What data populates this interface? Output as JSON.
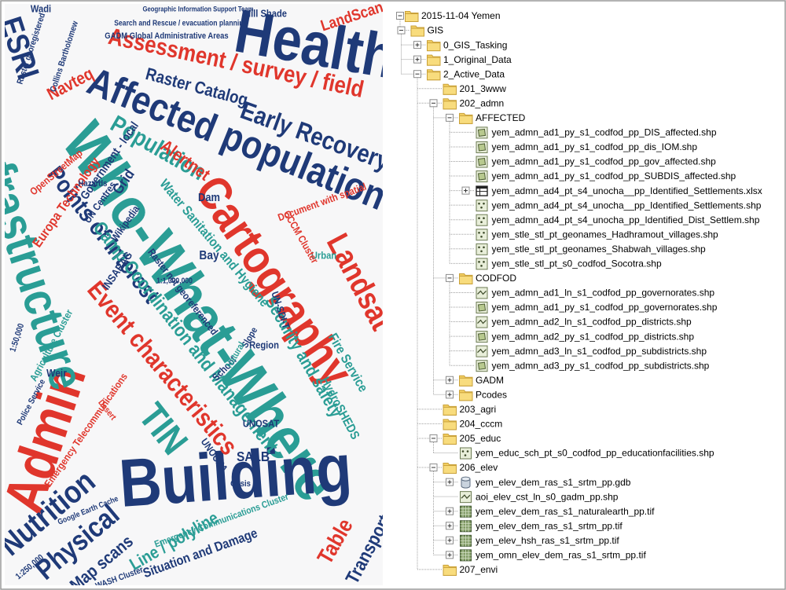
{
  "cloud": {
    "words": [
      {
        "text": "Who-What-Where",
        "color": "#2a9d95"
      },
      {
        "text": "Building",
        "color": "#1f3a78"
      },
      {
        "text": "Affected population",
        "color": "#1f3a78"
      },
      {
        "text": "Health",
        "color": "#1f3a78"
      },
      {
        "text": "Cartography",
        "color": "#e0362c"
      },
      {
        "text": "Admin",
        "color": "#e0362c"
      },
      {
        "text": "Infrastructure",
        "color": "#2a9d95"
      },
      {
        "text": "Assessment / survey / field",
        "color": "#e0362c"
      },
      {
        "text": "Early Recovery",
        "color": "#1f3a78"
      },
      {
        "text": "Population",
        "color": "#2a9d95"
      },
      {
        "text": "Alertnet",
        "color": "#e0362c"
      },
      {
        "text": "Points of Interest",
        "color": "#1f3a78"
      },
      {
        "text": "Event characteristics",
        "color": "#e0362c"
      },
      {
        "text": "Camp Coordination and Management",
        "color": "#2a9d95"
      },
      {
        "text": "Landsat",
        "color": "#e0362c"
      },
      {
        "text": "TIN",
        "color": "#2a9d95"
      },
      {
        "text": "Nutrition",
        "color": "#1f3a78"
      },
      {
        "text": "Physical",
        "color": "#1f3a78"
      },
      {
        "text": "Map scans",
        "color": "#1f3a78"
      },
      {
        "text": "Line / polyline",
        "color": "#2a9d95"
      },
      {
        "text": "Situation and Damage",
        "color": "#1f3a78"
      },
      {
        "text": "Security and safety",
        "color": "#2a9d95"
      },
      {
        "text": "Fire Service",
        "color": "#2a9d95"
      },
      {
        "text": "Table",
        "color": "#e0362c"
      },
      {
        "text": "Transport",
        "color": "#1f3a78"
      },
      {
        "text": "LandScan",
        "color": "#e0362c"
      },
      {
        "text": "ESRI",
        "color": "#1f3a78"
      },
      {
        "text": "Navteq",
        "color": "#e0362c"
      },
      {
        "text": "Raster Catalog",
        "color": "#1f3a78"
      },
      {
        "text": "Hill Shade",
        "color": "#1f3a78"
      },
      {
        "text": "Water Sanitation and Hygiene",
        "color": "#2a9d95"
      },
      {
        "text": "Europa Technology",
        "color": "#e0362c"
      },
      {
        "text": "Government - local",
        "color": "#1f3a78"
      },
      {
        "text": "OpenStreetMap",
        "color": "#e0362c"
      },
      {
        "text": "Grid",
        "color": "#1f3a78"
      },
      {
        "text": "UNOSAT",
        "color": "#1f3a78"
      },
      {
        "text": "SALB",
        "color": "#1f3a78"
      },
      {
        "text": "UNOCHA",
        "color": "#1f3a78"
      },
      {
        "text": "Emergency Telecommunications",
        "color": "#e0362c"
      },
      {
        "text": "Agriculture Cluster",
        "color": "#2a9d95"
      },
      {
        "text": "1:250,000",
        "color": "#1f3a78"
      },
      {
        "text": "WASH Cluster",
        "color": "#1f3a78"
      },
      {
        "text": "Emergency Communications Cluster",
        "color": "#2a9d95"
      },
      {
        "text": "Bay",
        "color": "#1f3a78"
      },
      {
        "text": "Dam",
        "color": "#1f3a78"
      },
      {
        "text": "Urban",
        "color": "#2a9d95"
      },
      {
        "text": "Region",
        "color": "#1f3a78"
      },
      {
        "text": "School",
        "color": "#1f3a78"
      },
      {
        "text": "UN-SDI-T",
        "color": "#1f3a78"
      },
      {
        "text": "CCCM Cluster",
        "color": "#e0362c"
      },
      {
        "text": "Document with spatial",
        "color": "#e0362c"
      },
      {
        "text": "Weir",
        "color": "#1f3a78"
      },
      {
        "text": "Police Service",
        "color": "#1f3a78"
      },
      {
        "text": "HydroSHEDS",
        "color": "#2a9d95"
      },
      {
        "text": "Desert",
        "color": "#e0362c"
      },
      {
        "text": "Google Earth Cache",
        "color": "#1f3a78"
      },
      {
        "text": "Hazards",
        "color": "#1f3a78"
      },
      {
        "text": "Raster not georeferenced",
        "color": "#1f3a78"
      },
      {
        "text": "GADM Global Administrative Areas",
        "color": "#1f3a78"
      },
      {
        "text": "Search and Rescue / evacuation planning",
        "color": "#1f3a78"
      },
      {
        "text": "Geographic Information Support Team",
        "color": "#1f3a78"
      },
      {
        "text": "Wadi",
        "color": "#1f3a78"
      },
      {
        "text": "Raster georegistered",
        "color": "#1f3a78"
      },
      {
        "text": "Collins Bartholomew",
        "color": "#1f3a78"
      },
      {
        "text": "Oasis",
        "color": "#1f3a78"
      },
      {
        "text": "UN Centres",
        "color": "#1f3a78"
      },
      {
        "text": "Wikipedia",
        "color": "#1f3a78"
      },
      {
        "text": "INSARAG",
        "color": "#1f3a78"
      },
      {
        "text": "1:50,000",
        "color": "#1f3a78"
      },
      {
        "text": "1:1,000,000",
        "color": "#1f3a78"
      },
      {
        "text": "Slope",
        "color": "#1f3a78"
      },
      {
        "text": "Natural",
        "color": "#2a9d95"
      }
    ]
  },
  "tree": {
    "label": "2015-11-04 Yemen",
    "icon": "folder",
    "toggle": "minus",
    "children": [
      {
        "label": "GIS",
        "icon": "folder",
        "toggle": "minus",
        "children": [
          {
            "label": "0_GIS_Tasking",
            "icon": "folder",
            "toggle": "plus"
          },
          {
            "label": "1_Original_Data",
            "icon": "folder",
            "toggle": "plus"
          },
          {
            "label": "2_Active_Data",
            "icon": "folder",
            "toggle": "minus",
            "children": [
              {
                "label": "201_3www",
                "icon": "folder"
              },
              {
                "label": "202_admn",
                "icon": "folder",
                "toggle": "minus",
                "children": [
                  {
                    "label": "AFFECTED",
                    "icon": "folder",
                    "toggle": "minus",
                    "children": [
                      {
                        "label": "yem_admn_ad1_py_s1_codfod_pp_DIS_affected.shp",
                        "icon": "polygon"
                      },
                      {
                        "label": "yem_admn_ad1_py_s1_codfod_pp_dis_IOM.shp",
                        "icon": "polygon"
                      },
                      {
                        "label": "yem_admn_ad1_py_s1_codfod_pp_gov_affected.shp",
                        "icon": "polygon"
                      },
                      {
                        "label": "yem_admn_ad1_py_s1_codfod_pp_SUBDIS_affected.shp",
                        "icon": "polygon"
                      },
                      {
                        "label": "yem_admn_ad4_pt_s4_unocha__pp_Identified_Settlements.xlsx",
                        "icon": "table",
                        "toggle": "plus"
                      },
                      {
                        "label": "yem_admn_ad4_pt_s4_unocha__pp_Identified_Settlements.shp",
                        "icon": "point"
                      },
                      {
                        "label": "yem_admn_ad4_pt_s4_unocha_pp_Identified_Dist_Settlem.shp",
                        "icon": "point"
                      },
                      {
                        "label": "yem_stle_stl_pt_geonames_Hadhramout_villages.shp",
                        "icon": "point"
                      },
                      {
                        "label": "yem_stle_stl_pt_geonames_Shabwah_villages.shp",
                        "icon": "point"
                      },
                      {
                        "label": "yem_stle_stl_pt_s0_codfod_Socotra.shp",
                        "icon": "point"
                      }
                    ]
                  },
                  {
                    "label": "CODFOD",
                    "icon": "folder",
                    "toggle": "minus",
                    "children": [
                      {
                        "label": "yem_admn_ad1_ln_s1_codfod_pp_governorates.shp",
                        "icon": "line"
                      },
                      {
                        "label": "yem_admn_ad1_py_s1_codfod_pp_governorates.shp",
                        "icon": "polygon"
                      },
                      {
                        "label": "yem_admn_ad2_ln_s1_codfod_pp_districts.shp",
                        "icon": "line"
                      },
                      {
                        "label": "yem_admn_ad2_py_s1_codfod_pp_districts.shp",
                        "icon": "polygon"
                      },
                      {
                        "label": "yem_admn_ad3_ln_s1_codfod_pp_subdistricts.shp",
                        "icon": "line"
                      },
                      {
                        "label": "yem_admn_ad3_py_s1_codfod_pp_subdistricts.shp",
                        "icon": "polygon"
                      }
                    ]
                  },
                  {
                    "label": "GADM",
                    "icon": "folder",
                    "toggle": "plus"
                  },
                  {
                    "label": "Pcodes",
                    "icon": "folder",
                    "toggle": "plus"
                  }
                ]
              },
              {
                "label": "203_agri",
                "icon": "folder"
              },
              {
                "label": "204_cccm",
                "icon": "folder"
              },
              {
                "label": "205_educ",
                "icon": "folder",
                "toggle": "minus",
                "children": [
                  {
                    "label": "yem_educ_sch_pt_s0_codfod_pp_educationfacilities.shp",
                    "icon": "point"
                  }
                ]
              },
              {
                "label": "206_elev",
                "icon": "folder",
                "toggle": "minus",
                "children": [
                  {
                    "label": "yem_elev_dem_ras_s1_srtm_pp.gdb",
                    "icon": "gdb",
                    "toggle": "plus"
                  },
                  {
                    "label": "aoi_elev_cst_ln_s0_gadm_pp.shp",
                    "icon": "line"
                  },
                  {
                    "label": "yem_elev_dem_ras_s1_naturalearth_pp.tif",
                    "icon": "raster",
                    "toggle": "plus"
                  },
                  {
                    "label": "yem_elev_dem_ras_s1_srtm_pp.tif",
                    "icon": "raster",
                    "toggle": "plus"
                  },
                  {
                    "label": "yem_elev_hsh_ras_s1_srtm_pp.tif",
                    "icon": "raster",
                    "toggle": "plus"
                  },
                  {
                    "label": "yem_omn_elev_dem_ras_s1_srtm_pp.tif",
                    "icon": "raster",
                    "toggle": "plus"
                  }
                ]
              },
              {
                "label": "207_envi",
                "icon": "folder"
              }
            ]
          }
        ]
      }
    ]
  }
}
